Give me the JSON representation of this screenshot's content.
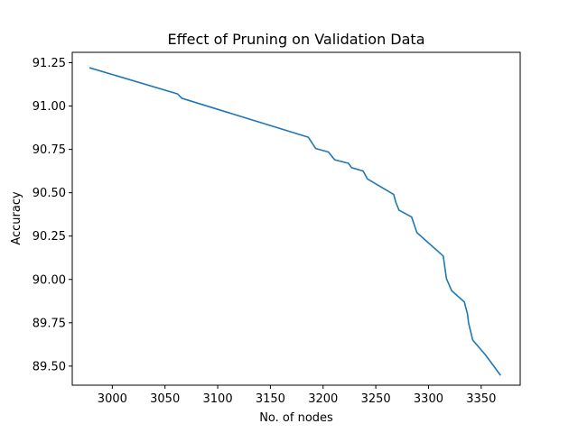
{
  "chart_data": {
    "type": "line",
    "title": "Effect of Pruning on Validation Data",
    "xlabel": "No. of nodes",
    "ylabel": "Accuracy",
    "xlim": [
      2962,
      3387
    ],
    "ylim": [
      89.39,
      91.31
    ],
    "xticks": [
      3000,
      3050,
      3100,
      3150,
      3200,
      3250,
      3300,
      3350
    ],
    "xtick_labels": [
      "3000",
      "3050",
      "3100",
      "3150",
      "3200",
      "3250",
      "3300",
      "3350"
    ],
    "yticks": [
      89.5,
      89.75,
      90.0,
      90.25,
      90.5,
      90.75,
      91.0,
      91.25
    ],
    "ytick_labels": [
      "89.50",
      "89.75",
      "90.00",
      "90.25",
      "90.50",
      "90.75",
      "91.00",
      "91.25"
    ],
    "grid": false,
    "series": [
      {
        "color": "#1f77b4",
        "x": [
          2979,
          3062,
          3066,
          3186,
          3193,
          3205,
          3211,
          3224,
          3227,
          3238,
          3242,
          3267,
          3269,
          3272,
          3284,
          3289,
          3314,
          3317,
          3322,
          3334,
          3337,
          3338,
          3342,
          3354,
          3368
        ],
        "y": [
          91.22,
          91.07,
          91.045,
          90.82,
          90.755,
          90.735,
          90.69,
          90.67,
          90.645,
          90.625,
          90.58,
          90.49,
          90.445,
          90.4,
          90.36,
          90.27,
          90.135,
          90.005,
          89.935,
          89.87,
          89.8,
          89.75,
          89.65,
          89.565,
          89.45
        ]
      }
    ]
  }
}
